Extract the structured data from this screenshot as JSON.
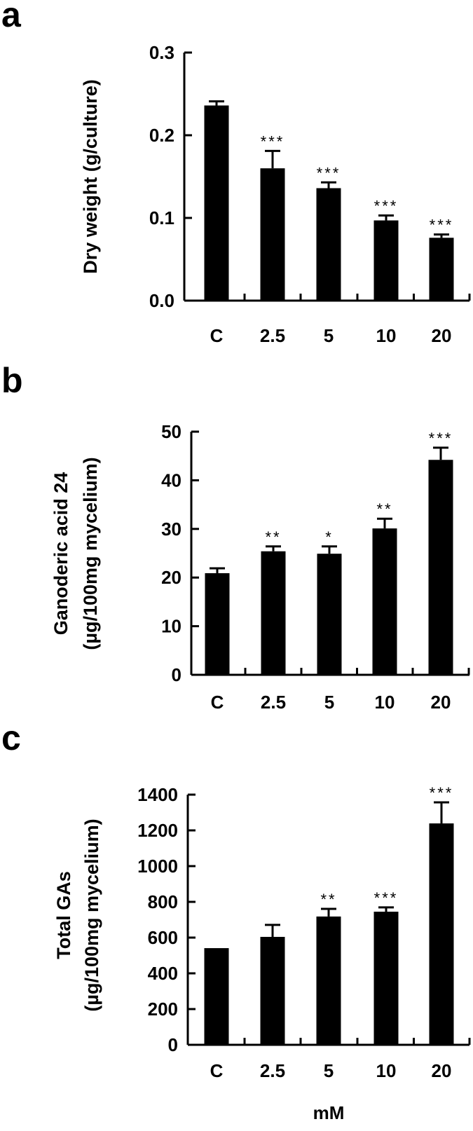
{
  "chart_data": [
    {
      "type": "bar",
      "panel": "a",
      "categories": [
        "C",
        "2.5",
        "5",
        "10",
        "20"
      ],
      "values": [
        0.236,
        0.16,
        0.136,
        0.097,
        0.076
      ],
      "error_upper": [
        0.005,
        0.021,
        0.007,
        0.006,
        0.004
      ],
      "significance": [
        "",
        "***",
        "***",
        "***",
        "***"
      ],
      "ylabel": [
        "Dry weight (g/culture)"
      ],
      "xlabel": "",
      "ylim": [
        0,
        0.3
      ],
      "yticks": [
        "0.0",
        "0.1",
        "0.2",
        "0.3"
      ],
      "ytick_values": [
        0,
        0.1,
        0.2,
        0.3
      ],
      "grid": false,
      "bar_color": "#000000"
    },
    {
      "type": "bar",
      "panel": "b",
      "categories": [
        "C",
        "2.5",
        "5",
        "10",
        "20"
      ],
      "values": [
        20.9,
        25.4,
        24.9,
        30.1,
        44.2
      ],
      "error_upper": [
        1.0,
        1.0,
        1.5,
        2.0,
        2.5
      ],
      "significance": [
        "",
        "**",
        "*",
        "**",
        "***"
      ],
      "ylabel": [
        "Ganoderic acid 24",
        "(µg/100mg mycelium)"
      ],
      "xlabel": "",
      "ylim": [
        0,
        50
      ],
      "yticks": [
        "0",
        "10",
        "20",
        "30",
        "40",
        "50"
      ],
      "ytick_values": [
        0,
        10,
        20,
        30,
        40,
        50
      ],
      "grid": false,
      "bar_color": "#000000"
    },
    {
      "type": "bar",
      "panel": "c",
      "categories": [
        "C",
        "2.5",
        "5",
        "10",
        "20"
      ],
      "values": [
        541,
        604,
        718,
        745,
        1239
      ],
      "error_upper": [
        0,
        67,
        43,
        24,
        118
      ],
      "significance": [
        "",
        "",
        "**",
        "***",
        "***"
      ],
      "ylabel": [
        "Total GAs",
        "(µg/100mg mycelium)"
      ],
      "xlabel": "mM",
      "ylim": [
        0,
        1400
      ],
      "yticks": [
        "0",
        "200",
        "400",
        "600",
        "800",
        "1000",
        "1200",
        "1400"
      ],
      "ytick_values": [
        0,
        200,
        400,
        600,
        800,
        1000,
        1200,
        1400
      ],
      "grid": false,
      "bar_color": "#000000"
    }
  ]
}
